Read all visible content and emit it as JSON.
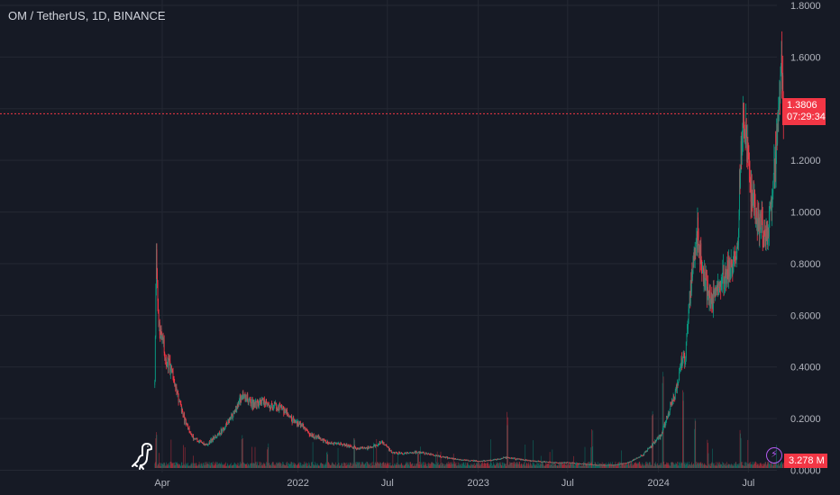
{
  "header": {
    "title": "OM / TetherUS, 1D, BINANCE"
  },
  "price_tag": {
    "price": "1.3806",
    "countdown": "07:29:34"
  },
  "volume_tag": {
    "value": "3.278 M"
  },
  "icons": {
    "logo": "dinosaur-icon",
    "flash": "lightning-icon"
  },
  "colors": {
    "background": "#161a25",
    "grid": "#242833",
    "up": "#089981",
    "down": "#f23645",
    "text": "#d1d4dc",
    "axis_text": "#b2b5be"
  },
  "chart_data": {
    "type": "candlestick",
    "title": "OM / TetherUS, 1D, BINANCE",
    "y_scale": "linear",
    "ylim": [
      -0.04,
      1.8
    ],
    "y_ticks": [
      "1.8000",
      "1.6000",
      "1.4000",
      "1.2000",
      "1.0000",
      "0.8000",
      "0.6000",
      "0.4000",
      "0.2000",
      "0.0000"
    ],
    "x_ticks": [
      "Apr",
      "2022",
      "Jul",
      "2023",
      "Jul",
      "2024",
      "Jul"
    ],
    "x_range": [
      "2021-03-01",
      "2024-09-15"
    ],
    "last_price": 1.3806,
    "last_volume": "3.278 M",
    "grid": true,
    "price_path": [
      [
        "2021-03-17",
        0.33
      ],
      [
        "2021-03-20",
        0.85
      ],
      [
        "2021-03-25",
        0.55
      ],
      [
        "2021-04-01",
        0.5
      ],
      [
        "2021-04-10",
        0.42
      ],
      [
        "2021-04-20",
        0.4
      ],
      [
        "2021-05-01",
        0.3
      ],
      [
        "2021-05-15",
        0.2
      ],
      [
        "2021-06-01",
        0.13
      ],
      [
        "2021-06-15",
        0.11
      ],
      [
        "2021-07-01",
        0.1
      ],
      [
        "2021-07-20",
        0.13
      ],
      [
        "2021-08-10",
        0.18
      ],
      [
        "2021-09-01",
        0.25
      ],
      [
        "2021-09-10",
        0.3
      ],
      [
        "2021-10-01",
        0.25
      ],
      [
        "2021-10-20",
        0.27
      ],
      [
        "2021-11-10",
        0.25
      ],
      [
        "2021-12-01",
        0.24
      ],
      [
        "2021-12-20",
        0.2
      ],
      [
        "2022-01-10",
        0.17
      ],
      [
        "2022-02-01",
        0.13
      ],
      [
        "2022-03-01",
        0.11
      ],
      [
        "2022-04-01",
        0.1
      ],
      [
        "2022-05-01",
        0.085
      ],
      [
        "2022-06-01",
        0.09
      ],
      [
        "2022-06-20",
        0.11
      ],
      [
        "2022-07-10",
        0.07
      ],
      [
        "2022-08-01",
        0.065
      ],
      [
        "2022-09-01",
        0.07
      ],
      [
        "2022-10-01",
        0.06
      ],
      [
        "2022-11-10",
        0.045
      ],
      [
        "2022-12-01",
        0.04
      ],
      [
        "2023-01-01",
        0.035
      ],
      [
        "2023-02-01",
        0.04
      ],
      [
        "2023-03-01",
        0.05
      ],
      [
        "2023-04-01",
        0.04
      ],
      [
        "2023-05-01",
        0.035
      ],
      [
        "2023-06-01",
        0.03
      ],
      [
        "2023-07-01",
        0.03
      ],
      [
        "2023-08-01",
        0.025
      ],
      [
        "2023-09-01",
        0.02
      ],
      [
        "2023-10-01",
        0.02
      ],
      [
        "2023-11-01",
        0.03
      ],
      [
        "2023-12-01",
        0.06
      ],
      [
        "2023-12-20",
        0.1
      ],
      [
        "2024-01-05",
        0.13
      ],
      [
        "2024-01-20",
        0.22
      ],
      [
        "2024-02-05",
        0.3
      ],
      [
        "2024-02-15",
        0.4
      ],
      [
        "2024-02-25",
        0.45
      ],
      [
        "2024-03-01",
        0.6
      ],
      [
        "2024-03-10",
        0.8
      ],
      [
        "2024-03-20",
        0.92
      ],
      [
        "2024-04-01",
        0.75
      ],
      [
        "2024-04-15",
        0.65
      ],
      [
        "2024-05-01",
        0.7
      ],
      [
        "2024-05-15",
        0.75
      ],
      [
        "2024-06-01",
        0.8
      ],
      [
        "2024-06-10",
        0.9
      ],
      [
        "2024-06-15",
        1.2
      ],
      [
        "2024-06-20",
        1.38
      ],
      [
        "2024-07-01",
        1.2
      ],
      [
        "2024-07-10",
        1.08
      ],
      [
        "2024-07-20",
        0.92
      ],
      [
        "2024-07-25",
        1.0
      ],
      [
        "2024-08-05",
        0.88
      ],
      [
        "2024-08-15",
        1.0
      ],
      [
        "2024-08-25",
        1.2
      ],
      [
        "2024-09-01",
        1.45
      ],
      [
        "2024-09-05",
        1.58
      ],
      [
        "2024-09-10",
        1.38
      ]
    ],
    "volume_spikes": [
      [
        "2021-03-20",
        0.35
      ],
      [
        "2021-09-10",
        0.3
      ],
      [
        "2021-11-01",
        0.22
      ],
      [
        "2022-03-01",
        0.15
      ],
      [
        "2022-04-25",
        0.28
      ],
      [
        "2022-09-01",
        0.15
      ],
      [
        "2023-03-01",
        0.5
      ],
      [
        "2023-08-20",
        0.45
      ],
      [
        "2023-12-20",
        0.55
      ],
      [
        "2024-01-10",
        0.85
      ],
      [
        "2024-02-20",
        0.8
      ],
      [
        "2024-03-15",
        0.45
      ],
      [
        "2024-04-10",
        0.3
      ],
      [
        "2024-06-15",
        0.35
      ]
    ]
  }
}
